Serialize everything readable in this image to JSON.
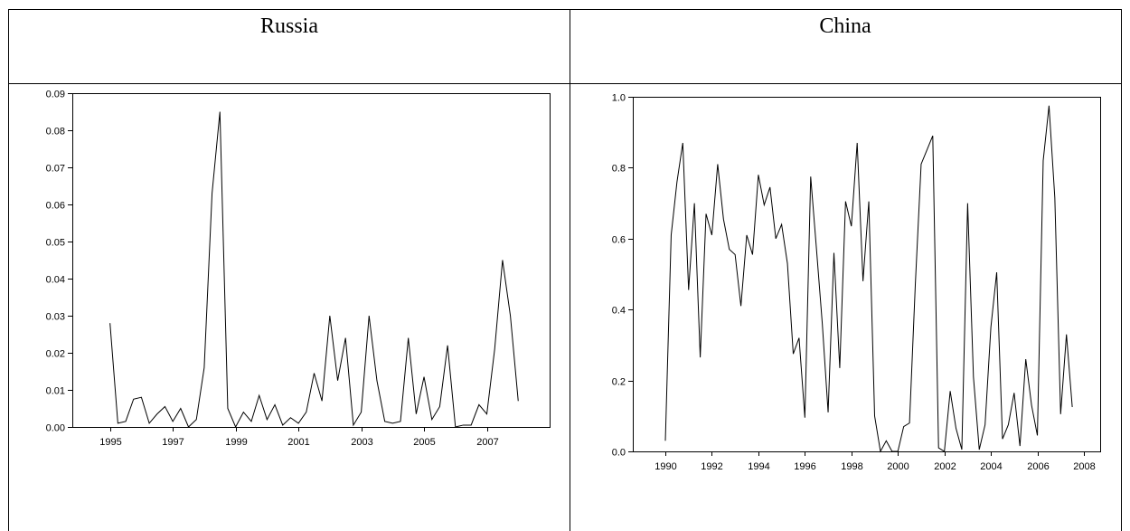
{
  "chart_data": [
    {
      "type": "line",
      "title": "Russia",
      "x": [
        1995,
        1995.25,
        1995.5,
        1995.75,
        1996,
        1996.25,
        1996.5,
        1996.75,
        1997,
        1997.25,
        1997.5,
        1997.75,
        1998,
        1998.25,
        1998.5,
        1998.75,
        1999,
        1999.25,
        1999.5,
        1999.75,
        2000,
        2000.25,
        2000.5,
        2000.75,
        2001,
        2001.25,
        2001.5,
        2001.75,
        2002,
        2002.25,
        2002.5,
        2002.75,
        2003,
        2003.25,
        2003.5,
        2003.75,
        2004,
        2004.25,
        2004.5,
        2004.75,
        2005,
        2005.25,
        2005.5,
        2005.75,
        2006,
        2006.25,
        2006.5,
        2006.75,
        2007,
        2007.25,
        2007.5,
        2007.75,
        2008
      ],
      "series": [
        {
          "color": "#000000",
          "values": [
            0.028,
            0.001,
            0.0015,
            0.0075,
            0.008,
            0.001,
            0.0035,
            0.0055,
            0.0015,
            0.005,
            0,
            0.002,
            0.016,
            0.063,
            0.085,
            0.005,
            0,
            0.004,
            0.0015,
            0.0085,
            0.002,
            0.006,
            0.0005,
            0.0025,
            0.001,
            0.004,
            0.0145,
            0.007,
            0.03,
            0.0125,
            0.024,
            0.0005,
            0.004,
            0.03,
            0.0125,
            0.0015,
            0.001,
            0.0015,
            0.024,
            0.0035,
            0.0135,
            0.002,
            0.0055,
            0.022,
            0,
            0.0005,
            0.0005,
            0.006,
            0.0035,
            0.021,
            0.045,
            0.03,
            0.007
          ]
        }
      ],
      "xlim": [
        1993.8,
        2009
      ],
      "xticks": [
        1995,
        1997,
        1999,
        2001,
        2003,
        2005,
        2007
      ],
      "ylim": [
        0,
        0.09
      ],
      "yticks": [
        {
          "value": 0,
          "label": "0.00"
        },
        0.01,
        0.02,
        0.03,
        0.04,
        0.05,
        0.06,
        0.07,
        0.08,
        0.09
      ]
    },
    {
      "type": "line",
      "title": "China",
      "x": [
        1990,
        1990.25,
        1990.5,
        1990.75,
        1991,
        1991.25,
        1991.5,
        1991.75,
        1992,
        1992.25,
        1992.5,
        1992.75,
        1993,
        1993.25,
        1993.5,
        1993.75,
        1994,
        1994.25,
        1994.5,
        1994.75,
        1995,
        1995.25,
        1995.5,
        1995.75,
        1996,
        1996.25,
        1996.5,
        1996.75,
        1997,
        1997.25,
        1997.5,
        1997.75,
        1998,
        1998.25,
        1998.5,
        1998.75,
        1999,
        1999.25,
        1999.5,
        1999.75,
        2000,
        2000.25,
        2000.5,
        2000.75,
        2001,
        2001.25,
        2001.5,
        2001.75,
        2002,
        2002.25,
        2002.5,
        2002.75,
        2003,
        2003.25,
        2003.5,
        2003.75,
        2004,
        2004.25,
        2004.5,
        2004.75,
        2005,
        2005.25,
        2005.5,
        2005.75,
        2006,
        2006.25,
        2006.5,
        2006.75,
        2007,
        2007.25,
        2007.5
      ],
      "series": [
        {
          "color": "#000000",
          "values": [
            0.03,
            0.61,
            0.76,
            0.87,
            0.455,
            0.7,
            0.265,
            0.67,
            0.61,
            0.81,
            0.655,
            0.57,
            0.555,
            0.41,
            0.61,
            0.555,
            0.78,
            0.695,
            0.745,
            0.6,
            0.64,
            0.53,
            0.275,
            0.32,
            0.095,
            0.775,
            0.57,
            0.36,
            0.11,
            0.56,
            0.235,
            0.705,
            0.635,
            0.87,
            0.48,
            0.705,
            0.1,
            0,
            0.03,
            0,
            0,
            0.07,
            0.08,
            0.47,
            0.81,
            0.85,
            0.89,
            0.01,
            0,
            0.17,
            0.065,
            0.005,
            0.7,
            0.21,
            0.005,
            0.075,
            0.35,
            0.505,
            0.035,
            0.075,
            0.165,
            0.015,
            0.26,
            0.13,
            0.045,
            0.82,
            0.975,
            0.715,
            0.105,
            0.33,
            0.125
          ]
        }
      ],
      "xlim": [
        1988.6,
        2008.7
      ],
      "xticks": [
        1990,
        1992,
        1994,
        1996,
        1998,
        2000,
        2002,
        2004,
        2006,
        2008
      ],
      "ylim": [
        0,
        1
      ],
      "yticks": [
        {
          "value": 0,
          "label": "0.0"
        },
        0.2,
        0.4,
        0.6,
        0.8,
        {
          "value": 1,
          "label": "1.0"
        }
      ]
    }
  ]
}
